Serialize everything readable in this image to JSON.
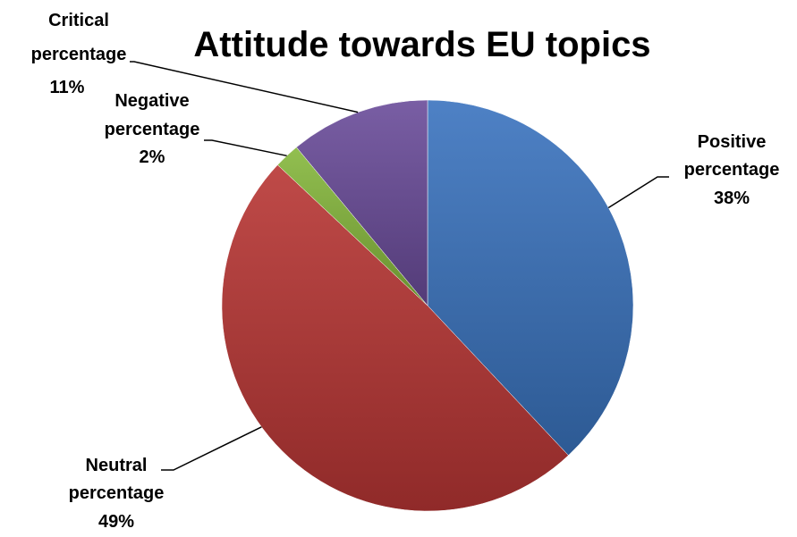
{
  "colors": {
    "positive": "#3A73BE",
    "neutral": "#B83634",
    "negative": "#86B83C",
    "critical": "#6A4C9A"
  },
  "chart_data": {
    "type": "pie",
    "title": "Attitude towards EU topics",
    "start_angle_deg": 0,
    "direction": "clockwise",
    "slices": [
      {
        "key": "positive",
        "line1": "Positive",
        "line2": "percentage",
        "percent_label": "38%",
        "value": 38
      },
      {
        "key": "neutral",
        "line1": "Neutral",
        "line2": "percentage",
        "percent_label": "49%",
        "value": 49
      },
      {
        "key": "negative",
        "line1": "Negative",
        "line2": "percentage",
        "percent_label": "2%",
        "value": 2
      },
      {
        "key": "critical",
        "line1": "Critical",
        "line2": "percentage",
        "percent_label": "11%",
        "value": 11
      }
    ]
  }
}
